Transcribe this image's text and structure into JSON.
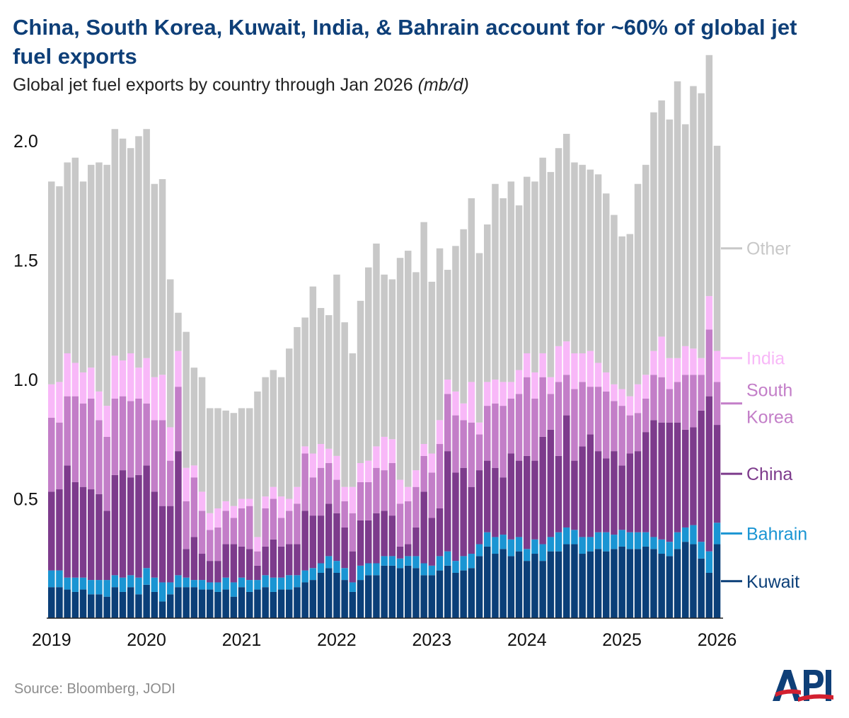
{
  "title": "China, South Korea, Kuwait, India, & Bahrain account for ~60% of global jet fuel exports",
  "subtitle": "Global jet fuel exports by country through Jan 2026",
  "subtitle_unit": "(mb/d)",
  "source": "Source: Bloomberg, JODI",
  "logo_text": "API",
  "chart_data": {
    "type": "bar",
    "stacked": true,
    "categories": [
      "Jan 2019",
      "Feb 2019",
      "Mar 2019",
      "Apr 2019",
      "May 2019",
      "Jun 2019",
      "Jul 2019",
      "Aug 2019",
      "Sep 2019",
      "Oct 2019",
      "Nov 2019",
      "Dec 2019",
      "Jan 2020",
      "Feb 2020",
      "Mar 2020",
      "Apr 2020",
      "May 2020",
      "Jun 2020",
      "Jul 2020",
      "Aug 2020",
      "Sep 2020",
      "Oct 2020",
      "Nov 2020",
      "Dec 2020",
      "Jan 2021",
      "Feb 2021",
      "Mar 2021",
      "Apr 2021",
      "May 2021",
      "Jun 2021",
      "Jul 2021",
      "Aug 2021",
      "Sep 2021",
      "Oct 2021",
      "Nov 2021",
      "Dec 2021",
      "Jan 2022",
      "Feb 2022",
      "Mar 2022",
      "Apr 2022",
      "May 2022",
      "Jun 2022",
      "Jul 2022",
      "Aug 2022",
      "Sep 2022",
      "Oct 2022",
      "Nov 2022",
      "Dec 2022",
      "Jan 2023",
      "Feb 2023",
      "Mar 2023",
      "Apr 2023",
      "May 2023",
      "Jun 2023",
      "Jul 2023",
      "Aug 2023",
      "Sep 2023",
      "Oct 2023",
      "Nov 2023",
      "Dec 2023",
      "Jan 2024",
      "Feb 2024",
      "Mar 2024",
      "Apr 2024",
      "May 2024",
      "Jun 2024",
      "Jul 2024",
      "Aug 2024",
      "Sep 2024",
      "Oct 2024",
      "Nov 2024",
      "Dec 2024",
      "Jan 2025",
      "Feb 2025",
      "Mar 2025",
      "Apr 2025",
      "May 2025",
      "Jun 2025",
      "Jul 2025",
      "Aug 2025",
      "Sep 2025",
      "Oct 2025",
      "Nov 2025",
      "Dec 2025",
      "Jan 2026"
    ],
    "x_tick_labels": [
      "2019",
      "2020",
      "2021",
      "2022",
      "2023",
      "2024",
      "2025",
      "2026"
    ],
    "y_tick_labels": [
      "0.5",
      "1.0",
      "1.5",
      "2.0"
    ],
    "y_ticks": [
      0.5,
      1.0,
      1.5,
      2.0
    ],
    "ylim": [
      0,
      2.3
    ],
    "grid": false,
    "legend": "right",
    "series": [
      {
        "name": "Kuwait",
        "color": "#0b3f78",
        "values": [
          0.13,
          0.13,
          0.12,
          0.11,
          0.12,
          0.1,
          0.1,
          0.09,
          0.13,
          0.11,
          0.13,
          0.1,
          0.14,
          0.11,
          0.07,
          0.1,
          0.13,
          0.13,
          0.13,
          0.12,
          0.12,
          0.11,
          0.12,
          0.09,
          0.13,
          0.11,
          0.12,
          0.13,
          0.11,
          0.12,
          0.12,
          0.13,
          0.15,
          0.16,
          0.19,
          0.21,
          0.19,
          0.16,
          0.11,
          0.16,
          0.18,
          0.18,
          0.22,
          0.22,
          0.21,
          0.22,
          0.21,
          0.18,
          0.18,
          0.2,
          0.22,
          0.19,
          0.2,
          0.21,
          0.26,
          0.3,
          0.27,
          0.29,
          0.26,
          0.28,
          0.24,
          0.27,
          0.24,
          0.28,
          0.28,
          0.31,
          0.31,
          0.27,
          0.28,
          0.29,
          0.28,
          0.29,
          0.3,
          0.29,
          0.29,
          0.3,
          0.29,
          0.27,
          0.26,
          0.29,
          0.32,
          0.31,
          0.25,
          0.19,
          0.31
        ]
      },
      {
        "name": "Bahrain",
        "color": "#1a95d3",
        "values": [
          0.07,
          0.07,
          0.05,
          0.06,
          0.05,
          0.06,
          0.06,
          0.07,
          0.05,
          0.06,
          0.05,
          0.07,
          0.07,
          0.06,
          0.08,
          0.05,
          0.05,
          0.04,
          0.03,
          0.04,
          0.03,
          0.04,
          0.05,
          0.06,
          0.04,
          0.05,
          0.04,
          0.05,
          0.06,
          0.05,
          0.06,
          0.05,
          0.05,
          0.05,
          0.04,
          0.05,
          0.05,
          0.05,
          0.04,
          0.06,
          0.05,
          0.05,
          0.04,
          0.04,
          0.04,
          0.04,
          0.05,
          0.05,
          0.04,
          0.06,
          0.06,
          0.05,
          0.06,
          0.06,
          0.05,
          0.06,
          0.07,
          0.06,
          0.07,
          0.06,
          0.05,
          0.06,
          0.07,
          0.06,
          0.08,
          0.07,
          0.06,
          0.07,
          0.06,
          0.07,
          0.08,
          0.06,
          0.07,
          0.07,
          0.07,
          0.06,
          0.05,
          0.06,
          0.06,
          0.07,
          0.06,
          0.08,
          0.07,
          0.09,
          0.09
        ]
      },
      {
        "name": "China",
        "color": "#7d3b8c",
        "values": [
          0.33,
          0.34,
          0.47,
          0.4,
          0.38,
          0.38,
          0.36,
          0.29,
          0.42,
          0.45,
          0.41,
          0.43,
          0.43,
          0.36,
          0.32,
          0.32,
          0.52,
          0.12,
          0.18,
          0.11,
          0.09,
          0.09,
          0.14,
          0.16,
          0.13,
          0.13,
          0.06,
          0.12,
          0.16,
          0.13,
          0.13,
          0.13,
          0.25,
          0.22,
          0.2,
          0.22,
          0.2,
          0.17,
          0.13,
          0.19,
          0.18,
          0.21,
          0.19,
          0.17,
          0.05,
          0.05,
          0.12,
          0.3,
          0.2,
          0.2,
          0.42,
          0.37,
          0.37,
          0.28,
          0.31,
          0.3,
          0.29,
          0.24,
          0.36,
          0.32,
          0.39,
          0.33,
          0.45,
          0.45,
          0.32,
          0.47,
          0.29,
          0.38,
          0.43,
          0.34,
          0.31,
          0.35,
          0.27,
          0.33,
          0.34,
          0.42,
          0.49,
          0.49,
          0.5,
          0.46,
          0.41,
          0.41,
          0.55,
          0.65,
          0.41
        ]
      },
      {
        "name": "South Korea",
        "color": "#c37ec8",
        "values": [
          0.31,
          0.28,
          0.29,
          0.36,
          0.35,
          0.38,
          0.31,
          0.31,
          0.32,
          0.31,
          0.32,
          0.32,
          0.26,
          0.3,
          0.36,
          0.19,
          0.27,
          0.2,
          0.25,
          0.18,
          0.13,
          0.14,
          0.14,
          0.11,
          0.16,
          0.18,
          0.06,
          0.16,
          0.17,
          0.12,
          0.14,
          0.17,
          0.24,
          0.16,
          0.2,
          0.17,
          0.14,
          0.11,
          0.16,
          0.16,
          0.16,
          0.19,
          0.17,
          0.22,
          0.18,
          0.18,
          0.17,
          0.15,
          0.19,
          0.27,
          0.24,
          0.24,
          0.2,
          0.27,
          0.15,
          0.23,
          0.27,
          0.3,
          0.23,
          0.28,
          0.33,
          0.26,
          0.25,
          0.15,
          0.31,
          0.17,
          0.3,
          0.27,
          0.2,
          0.27,
          0.28,
          0.21,
          0.25,
          0.16,
          0.16,
          0.14,
          0.19,
          0.19,
          0.14,
          0.17,
          0.23,
          0.22,
          0.15,
          0.28,
          0.18
        ]
      },
      {
        "name": "India",
        "color": "#f8b8f8",
        "values": [
          0.14,
          0.17,
          0.18,
          0.14,
          0.13,
          0.13,
          0.12,
          0.13,
          0.18,
          0.15,
          0.2,
          0.13,
          0.19,
          0.18,
          0.19,
          0.14,
          0.15,
          0.14,
          0.05,
          0.08,
          0.07,
          0.08,
          0.04,
          0.05,
          0.04,
          0.03,
          0.06,
          0.05,
          0.05,
          0.09,
          0.05,
          0.07,
          0.03,
          0.1,
          0.1,
          0.06,
          0.1,
          0.06,
          0.11,
          0.08,
          0.09,
          0.09,
          0.14,
          0.1,
          0.1,
          0.06,
          0.07,
          0.05,
          0.08,
          0.1,
          0.06,
          0.1,
          0.07,
          0.17,
          0.05,
          0.1,
          0.1,
          0.1,
          0.07,
          0.1,
          0.1,
          0.11,
          0.1,
          0.07,
          0.15,
          0.14,
          0.15,
          0.12,
          0.15,
          0.1,
          0.08,
          0.07,
          0.07,
          0.08,
          0.12,
          0.1,
          0.1,
          0.17,
          0.13,
          0.1,
          0.12,
          0.11,
          0.07,
          0.14,
          0.13
        ]
      },
      {
        "name": "Other",
        "color": "#c8c8c8",
        "values": [
          0.85,
          0.82,
          0.8,
          0.86,
          0.8,
          0.85,
          0.96,
          1.01,
          0.95,
          0.93,
          0.86,
          0.97,
          0.96,
          0.81,
          0.82,
          0.62,
          0.16,
          0.57,
          0.41,
          0.48,
          0.44,
          0.42,
          0.38,
          0.39,
          0.38,
          0.38,
          0.61,
          0.5,
          0.49,
          0.5,
          0.63,
          0.67,
          0.54,
          0.7,
          0.57,
          0.56,
          0.76,
          0.69,
          0.56,
          0.68,
          0.81,
          0.85,
          0.68,
          0.67,
          0.93,
          0.99,
          0.83,
          0.93,
          0.72,
          0.72,
          0.46,
          0.61,
          0.73,
          0.77,
          0.71,
          0.66,
          0.82,
          0.77,
          0.84,
          0.69,
          0.74,
          0.8,
          0.82,
          0.86,
          0.83,
          0.87,
          0.8,
          0.79,
          0.76,
          0.79,
          0.75,
          0.71,
          0.64,
          0.68,
          0.84,
          0.88,
          1.0,
          0.99,
          1.0,
          1.16,
          0.93,
          1.1,
          1.11,
          1.01,
          0.86
        ]
      }
    ]
  }
}
